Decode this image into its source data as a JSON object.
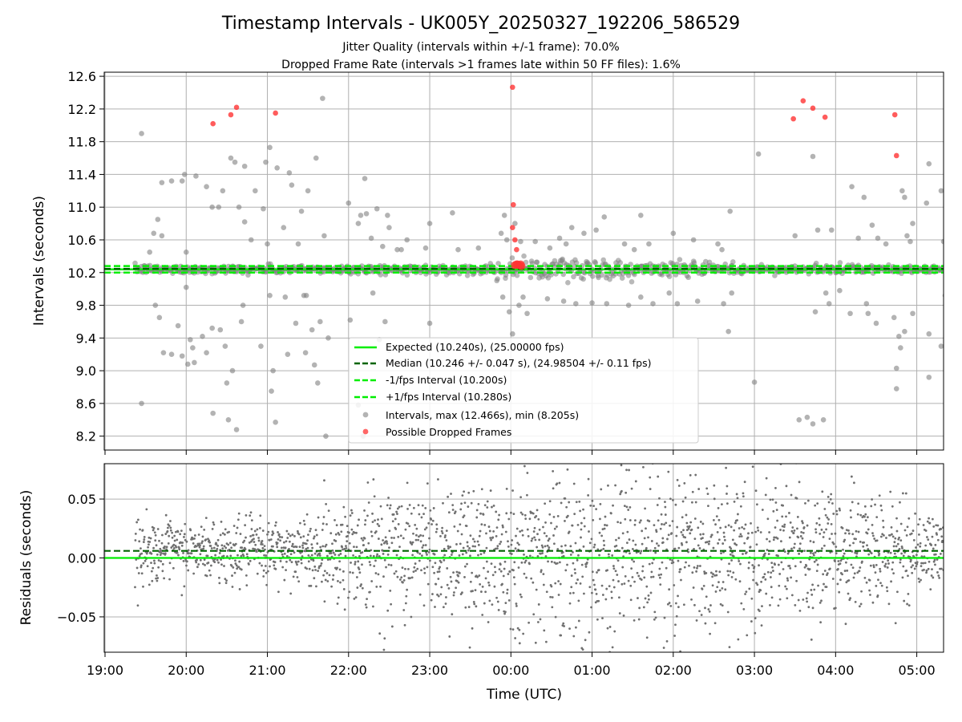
{
  "chart_data": {
    "type": "scatter",
    "title": "Timestamp Intervals - UK005Y_20250327_192206_586529",
    "subtitle_lines": [
      "Jitter Quality (intervals within +/-1 frame): 70.0%",
      "Dropped Frame Rate (intervals >1 frames late within 50 FF files): 1.6%"
    ],
    "xlabel": "Time (UTC)",
    "x_ticks": [
      "19:00",
      "20:00",
      "21:00",
      "22:00",
      "23:00",
      "00:00",
      "01:00",
      "02:00",
      "03:00",
      "04:00",
      "05:00"
    ],
    "x_start_hour": 19,
    "xlim_hours": [
      18.99,
      29.33
    ],
    "grid": true,
    "top_panel": {
      "ylabel": "Intervals (seconds)",
      "ylim": [
        8.03,
        12.65
      ],
      "y_ticks": [
        8.2,
        8.6,
        9.0,
        9.4,
        9.8,
        10.2,
        10.6,
        11.0,
        11.4,
        11.8,
        12.2,
        12.6
      ],
      "lines": [
        {
          "name": "Expected (10.240s), (25.00000 fps)",
          "value": 10.24,
          "color": "#00ee00",
          "style": "solid"
        },
        {
          "name": "Median (10.246 +/- 0.047 s), (24.98504 +/- 0.11 fps)",
          "value": 10.246,
          "color": "#006400",
          "style": "dashed"
        },
        {
          "name": "-1/fps Interval (10.200s)",
          "value": 10.2,
          "color": "#00ee00",
          "style": "dashed"
        },
        {
          "name": "+1/fps Interval (10.280s)",
          "value": 10.28,
          "color": "#00ee00",
          "style": "dashed"
        }
      ],
      "scatter_series": [
        {
          "name": "Intervals, max (12.466s), min (8.205s)",
          "color": "#808080"
        },
        {
          "name": "Possible Dropped Frames",
          "color": "#ff3333"
        }
      ],
      "legend_placement": "lower-center",
      "outliers": [
        [
          19.45,
          11.9
        ],
        [
          19.45,
          8.6
        ],
        [
          19.55,
          10.45
        ],
        [
          19.6,
          10.68
        ],
        [
          19.62,
          9.8
        ],
        [
          19.65,
          10.85
        ],
        [
          19.67,
          9.65
        ],
        [
          19.7,
          10.65
        ],
        [
          19.7,
          11.3
        ],
        [
          19.72,
          9.22
        ],
        [
          19.82,
          11.32
        ],
        [
          19.82,
          9.2
        ],
        [
          19.9,
          9.55
        ],
        [
          19.95,
          11.32
        ],
        [
          19.95,
          9.18
        ],
        [
          19.98,
          11.4
        ],
        [
          20.0,
          10.45
        ],
        [
          20.0,
          10.02
        ],
        [
          20.02,
          9.08
        ],
        [
          20.05,
          9.38
        ],
        [
          20.08,
          9.28
        ],
        [
          20.1,
          9.1
        ],
        [
          20.12,
          11.38
        ],
        [
          20.2,
          9.42
        ],
        [
          20.25,
          11.25
        ],
        [
          20.25,
          9.22
        ],
        [
          20.32,
          11.0
        ],
        [
          20.32,
          9.52
        ],
        [
          20.33,
          8.48
        ],
        [
          20.4,
          11.0
        ],
        [
          20.42,
          9.5
        ],
        [
          20.45,
          11.2
        ],
        [
          20.48,
          9.3
        ],
        [
          20.5,
          8.85
        ],
        [
          20.52,
          8.4
        ],
        [
          20.55,
          11.6
        ],
        [
          20.57,
          9.0
        ],
        [
          20.6,
          11.55
        ],
        [
          20.62,
          8.28
        ],
        [
          20.65,
          11.0
        ],
        [
          20.68,
          9.6
        ],
        [
          20.7,
          9.8
        ],
        [
          20.72,
          11.5
        ],
        [
          20.72,
          10.82
        ],
        [
          20.8,
          10.6
        ],
        [
          20.85,
          11.2
        ],
        [
          20.92,
          9.3
        ],
        [
          20.95,
          10.98
        ],
        [
          20.98,
          11.55
        ],
        [
          21.0,
          10.55
        ],
        [
          21.03,
          11.73
        ],
        [
          21.03,
          9.92
        ],
        [
          21.05,
          8.75
        ],
        [
          21.07,
          9.0
        ],
        [
          21.1,
          8.37
        ],
        [
          21.12,
          11.48
        ],
        [
          21.2,
          10.75
        ],
        [
          21.22,
          9.9
        ],
        [
          21.25,
          9.2
        ],
        [
          21.27,
          11.42
        ],
        [
          21.3,
          11.27
        ],
        [
          21.35,
          9.58
        ],
        [
          21.38,
          10.55
        ],
        [
          21.42,
          10.95
        ],
        [
          21.45,
          9.92
        ],
        [
          21.47,
          9.22
        ],
        [
          21.48,
          9.92
        ],
        [
          21.5,
          11.2
        ],
        [
          21.55,
          9.5
        ],
        [
          21.58,
          9.07
        ],
        [
          21.6,
          11.6
        ],
        [
          21.62,
          8.85
        ],
        [
          21.65,
          9.6
        ],
        [
          21.68,
          12.33
        ],
        [
          21.7,
          10.65
        ],
        [
          21.72,
          8.2
        ],
        [
          21.75,
          9.4
        ],
        [
          22.0,
          11.05
        ],
        [
          22.02,
          9.62
        ],
        [
          22.12,
          8.58
        ],
        [
          22.12,
          10.8
        ],
        [
          22.15,
          10.9
        ],
        [
          22.18,
          8.2
        ],
        [
          22.2,
          11.35
        ],
        [
          22.22,
          10.92
        ],
        [
          22.28,
          10.62
        ],
        [
          22.3,
          9.95
        ],
        [
          22.35,
          10.98
        ],
        [
          22.38,
          9.38
        ],
        [
          22.42,
          10.52
        ],
        [
          22.45,
          9.6
        ],
        [
          22.48,
          10.9
        ],
        [
          22.5,
          10.75
        ],
        [
          22.5,
          9.25
        ],
        [
          22.6,
          10.48
        ],
        [
          22.65,
          10.48
        ],
        [
          22.72,
          10.6
        ],
        [
          23.0,
          9.58
        ],
        [
          23.0,
          10.8
        ],
        [
          23.28,
          10.93
        ],
        [
          23.35,
          10.48
        ],
        [
          23.6,
          10.5
        ],
        [
          23.88,
          10.68
        ],
        [
          23.9,
          9.9
        ],
        [
          23.92,
          10.9
        ],
        [
          23.95,
          10.6
        ],
        [
          23.98,
          9.72
        ],
        [
          24.02,
          9.45
        ],
        [
          24.05,
          10.8
        ],
        [
          24.1,
          9.8
        ],
        [
          24.12,
          10.58
        ],
        [
          24.15,
          9.9
        ],
        [
          24.2,
          9.7
        ],
        [
          24.3,
          10.58
        ],
        [
          24.45,
          9.88
        ],
        [
          24.48,
          10.5
        ],
        [
          24.6,
          10.62
        ],
        [
          24.65,
          9.85
        ],
        [
          24.68,
          10.55
        ],
        [
          24.75,
          10.75
        ],
        [
          24.8,
          9.82
        ],
        [
          24.9,
          10.68
        ],
        [
          25.0,
          9.83
        ],
        [
          25.05,
          10.72
        ],
        [
          25.15,
          10.88
        ],
        [
          25.18,
          9.82
        ],
        [
          25.4,
          10.55
        ],
        [
          25.45,
          9.8
        ],
        [
          25.52,
          10.48
        ],
        [
          25.6,
          9.9
        ],
        [
          25.6,
          10.9
        ],
        [
          25.7,
          10.55
        ],
        [
          25.75,
          9.82
        ],
        [
          25.95,
          9.95
        ],
        [
          26.0,
          10.68
        ],
        [
          26.05,
          9.82
        ],
        [
          26.25,
          10.6
        ],
        [
          26.3,
          9.85
        ],
        [
          26.55,
          10.55
        ],
        [
          26.62,
          9.82
        ],
        [
          26.68,
          9.48
        ],
        [
          26.7,
          10.95
        ],
        [
          26.72,
          9.95
        ],
        [
          27.0,
          8.86
        ],
        [
          27.05,
          11.65
        ],
        [
          27.5,
          10.65
        ],
        [
          27.55,
          8.4
        ],
        [
          27.65,
          8.43
        ],
        [
          27.72,
          8.35
        ],
        [
          27.72,
          11.62
        ],
        [
          27.75,
          9.72
        ],
        [
          27.78,
          10.72
        ],
        [
          27.85,
          8.4
        ],
        [
          27.88,
          9.95
        ],
        [
          27.92,
          9.82
        ],
        [
          27.95,
          10.72
        ],
        [
          28.05,
          9.98
        ],
        [
          28.18,
          9.7
        ],
        [
          28.2,
          11.25
        ],
        [
          28.28,
          10.62
        ],
        [
          28.35,
          11.12
        ],
        [
          28.38,
          9.82
        ],
        [
          28.4,
          9.7
        ],
        [
          28.45,
          10.78
        ],
        [
          28.5,
          9.58
        ],
        [
          28.52,
          10.62
        ],
        [
          28.62,
          10.55
        ],
        [
          28.72,
          9.65
        ],
        [
          28.75,
          8.78
        ],
        [
          28.75,
          9.03
        ],
        [
          28.78,
          9.42
        ],
        [
          28.8,
          9.28
        ],
        [
          28.82,
          11.2
        ],
        [
          28.85,
          11.12
        ],
        [
          28.85,
          9.48
        ],
        [
          28.88,
          10.65
        ],
        [
          28.95,
          9.7
        ],
        [
          28.95,
          10.8
        ],
        [
          29.12,
          11.05
        ],
        [
          29.15,
          11.53
        ],
        [
          29.15,
          8.92
        ],
        [
          29.15,
          9.45
        ],
        [
          29.3,
          11.2
        ],
        [
          29.3,
          9.3
        ],
        [
          29.33,
          10.58
        ],
        [
          29.35,
          9.92
        ],
        [
          28.92,
          10.58
        ],
        [
          26.6,
          10.48
        ],
        [
          22.95,
          10.5
        ]
      ],
      "dropped_frames": [
        [
          20.33,
          12.02
        ],
        [
          20.55,
          12.13
        ],
        [
          20.62,
          12.22
        ],
        [
          21.1,
          12.15
        ],
        [
          24.02,
          12.466
        ],
        [
          24.03,
          11.03
        ],
        [
          24.02,
          10.75
        ],
        [
          24.05,
          10.6
        ],
        [
          24.07,
          10.48
        ],
        [
          24.05,
          10.29
        ],
        [
          24.07,
          10.3
        ],
        [
          24.1,
          10.29
        ],
        [
          24.13,
          10.28
        ],
        [
          24.08,
          10.3
        ],
        [
          24.12,
          10.3
        ],
        [
          27.48,
          12.08
        ],
        [
          27.6,
          12.3
        ],
        [
          27.72,
          12.21
        ],
        [
          27.87,
          12.1
        ],
        [
          28.73,
          12.13
        ],
        [
          28.75,
          11.63
        ]
      ],
      "baseline_band": {
        "center": 10.24,
        "spread": 0.045,
        "x_range": [
          19.37,
          29.33
        ],
        "dense_cluster_x": [
          23.8,
          26.9
        ],
        "dense_spread": 0.13
      }
    },
    "bottom_panel": {
      "ylabel": "Residuals (seconds)",
      "ylim": [
        -0.08,
        0.08
      ],
      "y_ticks": [
        -0.05,
        0.0,
        0.05
      ],
      "y_tick_labels": [
        "−0.05",
        "0.00",
        "0.05"
      ],
      "lines": [
        {
          "value": 0.0,
          "color": "#00ee00",
          "style": "solid"
        },
        {
          "value": 0.006,
          "color": "#006400",
          "style": "dashed"
        }
      ],
      "scatter_color": "#707070",
      "x_range": [
        19.37,
        29.33
      ],
      "spread_profile": [
        {
          "x": 19.4,
          "sd": 0.012
        },
        {
          "x": 21.5,
          "sd": 0.014
        },
        {
          "x": 22.2,
          "sd": 0.026
        },
        {
          "x": 25.5,
          "sd": 0.038
        },
        {
          "x": 26.2,
          "sd": 0.036
        },
        {
          "x": 27.5,
          "sd": 0.03
        },
        {
          "x": 28.8,
          "sd": 0.02
        },
        {
          "x": 29.33,
          "sd": 0.014
        }
      ]
    }
  }
}
